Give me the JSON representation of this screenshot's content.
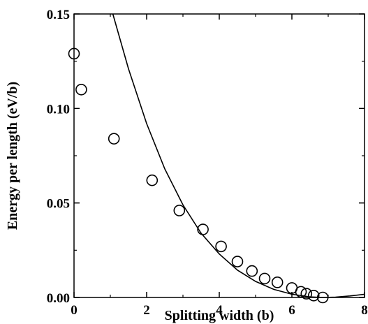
{
  "chart_data": {
    "type": "scatter",
    "title": "",
    "xlabel": "Splitting width (b)",
    "ylabel": "Energy per length (eV/b)",
    "xlim": [
      0,
      8
    ],
    "ylim": [
      0,
      0.15
    ],
    "x_ticks": [
      0,
      2,
      4,
      6,
      8
    ],
    "x_tick_labels": [
      "0",
      "2",
      "4",
      "6",
      "8"
    ],
    "y_ticks": [
      0,
      0.05,
      0.1,
      0.15
    ],
    "y_tick_labels": [
      "0.00",
      "0.05",
      "0.10",
      "0.15"
    ],
    "grid": false,
    "legend": "none",
    "series": [
      {
        "kind": "markers",
        "marker": "open-circle",
        "x": [
          0.0,
          0.2,
          1.1,
          2.15,
          2.9,
          3.55,
          4.05,
          4.5,
          4.9,
          5.25,
          5.6,
          6.0,
          6.25,
          6.4,
          6.6,
          6.85
        ],
        "y": [
          0.129,
          0.11,
          0.084,
          0.062,
          0.046,
          0.036,
          0.027,
          0.019,
          0.014,
          0.01,
          0.008,
          0.005,
          0.003,
          0.002,
          0.001,
          0.0
        ]
      },
      {
        "kind": "line",
        "x": [
          1.07,
          1.5,
          2.0,
          2.5,
          3.0,
          3.5,
          4.0,
          4.5,
          5.0,
          5.5,
          6.0,
          6.5,
          6.85,
          7.2,
          7.6,
          8.0
        ],
        "y": [
          0.15,
          0.121,
          0.092,
          0.068,
          0.049,
          0.034,
          0.023,
          0.0145,
          0.0085,
          0.0043,
          0.0017,
          0.0003,
          0.0,
          0.0002,
          0.0008,
          0.0017
        ]
      }
    ]
  }
}
